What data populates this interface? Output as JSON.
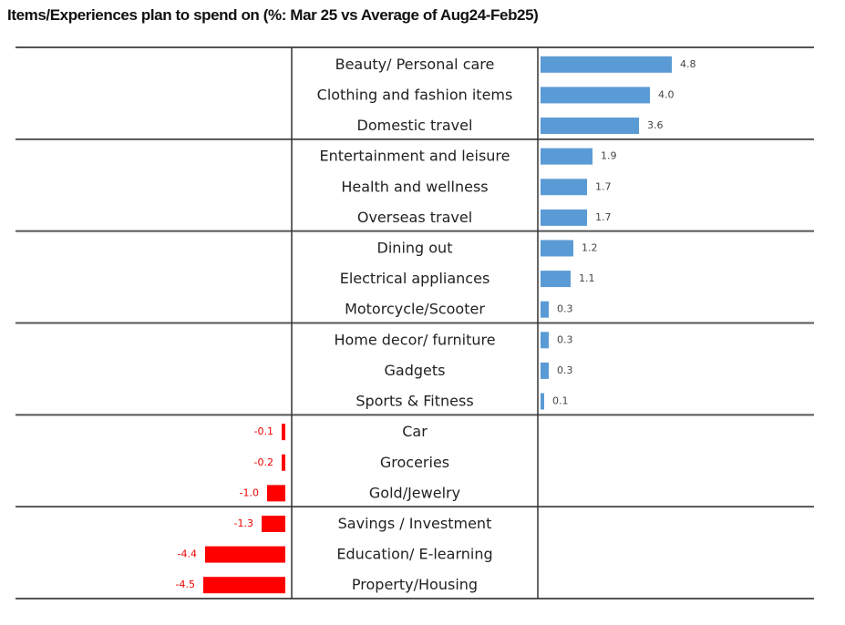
{
  "chart_data": {
    "type": "bar",
    "orientation": "horizontal",
    "title": "Items/Experiences plan to spend on (%: Mar 25 vs Average of Aug24-Feb25)",
    "categories": [
      "Beauty/ Personal care",
      "Clothing and fashion items",
      "Domestic travel",
      "Entertainment and leisure",
      "Health and wellness",
      "Overseas travel",
      "Dining out",
      "Electrical appliances",
      "Motorcycle/Scooter",
      "Home decor/ furniture",
      "Gadgets",
      "Sports & Fitness",
      "Car",
      "Groceries",
      "Gold/Jewelry",
      "Savings / Investment",
      "Education/ E-learning",
      "Property/Housing"
    ],
    "values": [
      4.8,
      4.0,
      3.6,
      1.9,
      1.7,
      1.7,
      1.2,
      1.1,
      0.3,
      0.3,
      0.3,
      0.1,
      -0.1,
      -0.2,
      -1.0,
      -1.3,
      -4.4,
      -4.5
    ],
    "labels": [
      "4.8",
      "4.0",
      "3.6",
      "1.9",
      "1.7",
      "1.7",
      "1.2",
      "1.1",
      "0.3",
      "0.3",
      "0.3",
      "0.1",
      "-0.1",
      "-0.2",
      "-1.0",
      "-1.3",
      "-4.4",
      "-4.5"
    ],
    "group_size": 3,
    "colors": {
      "positive": "#5b9bd5",
      "negative": "#ff0000"
    },
    "grid": false,
    "legend": "none"
  }
}
